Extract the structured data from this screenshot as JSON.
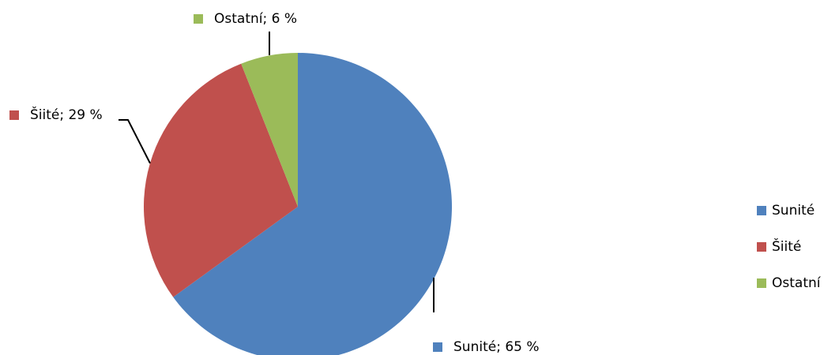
{
  "chart_data": {
    "type": "pie",
    "categories": [
      "Sunité",
      "Šiité",
      "Ostatní"
    ],
    "values": [
      65,
      29,
      6
    ],
    "value_labels": [
      "Sunité; 65 %",
      "Šiité; 29 %",
      "Ostatní; 6 %"
    ],
    "colors": [
      "#4f81bd",
      "#c0504d",
      "#9bbb59"
    ],
    "legend": "right"
  }
}
